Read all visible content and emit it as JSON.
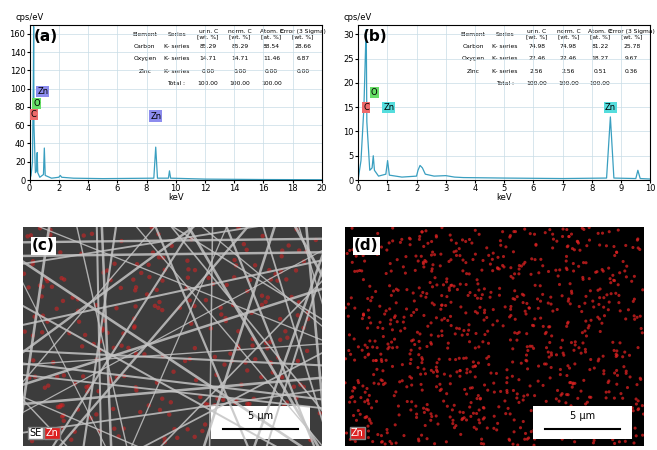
{
  "chart_data": [
    {
      "type": "line",
      "label": "(a)",
      "x_label": "keV",
      "y_label": "cps/eV",
      "color": "#3a9fc0",
      "x": [
        0,
        0.1,
        0.2,
        0.26,
        0.28,
        0.3,
        0.4,
        0.48,
        0.52,
        0.56,
        0.7,
        0.95,
        1.01,
        1.07,
        1.5,
        2.0,
        2.1,
        2.2,
        3,
        5,
        8.5,
        8.63,
        8.75,
        9.5,
        9.57,
        9.65,
        12,
        16,
        20
      ],
      "values": [
        0,
        5,
        20,
        120,
        168,
        60,
        8,
        10,
        30,
        8,
        3,
        6,
        35,
        5,
        2,
        3,
        5,
        3,
        2,
        1.5,
        2,
        36,
        2,
        2,
        10,
        2,
        1,
        0.5,
        0.3
      ],
      "xlim": [
        0,
        20
      ],
      "ylim": [
        0,
        170
      ],
      "xticks": [
        0,
        2,
        4,
        6,
        8,
        10,
        12,
        14,
        16,
        18,
        20
      ],
      "yticks": [
        0,
        20,
        40,
        60,
        80,
        100,
        120,
        140,
        160
      ],
      "grid": true,
      "peak_labels": [
        {
          "text": "Zn",
          "x": 0.9,
          "y": 97,
          "color": "#8c8cee"
        },
        {
          "text": "O",
          "x": 0.5,
          "y": 84,
          "color": "#66dd66"
        },
        {
          "text": "C",
          "x": 0.28,
          "y": 72,
          "color": "#ee6a6a"
        },
        {
          "text": "Zn",
          "x": 8.63,
          "y": 70,
          "color": "#8c8cee"
        }
      ],
      "table": {
        "header": [
          "Element",
          "Series",
          "unn. C\n[wt. %]",
          "norm. C\n[wt. %]",
          "Atom. C\n[at. %]",
          "Error (3 Sigma)\n[wt. %]"
        ],
        "rows": [
          [
            "Carbon",
            "K- series",
            "85.29",
            "85.29",
            "88.54",
            "28.66"
          ],
          [
            "Oxygen",
            "K- series",
            "14.71",
            "14.71",
            "11.46",
            "6.87"
          ],
          [
            "Zinc",
            "K- series",
            "0.00",
            "0.00",
            "0.00",
            "0.00"
          ],
          [
            null,
            "Total :",
            "100.00",
            "100.00",
            "100.00",
            null
          ]
        ]
      }
    },
    {
      "type": "line",
      "label": "(b)",
      "x_label": "keV",
      "y_label": "cps/eV",
      "color": "#3a9fc0",
      "x": [
        0,
        0.1,
        0.2,
        0.26,
        0.28,
        0.3,
        0.4,
        0.48,
        0.52,
        0.56,
        0.7,
        0.95,
        1.01,
        1.07,
        1.5,
        2.0,
        2.05,
        2.12,
        2.2,
        2.3,
        2.6,
        3.0,
        3.3,
        3.6,
        5,
        7,
        8.5,
        8.63,
        8.75,
        9.5,
        9.57,
        9.65,
        10
      ],
      "values": [
        0,
        4,
        15,
        28,
        31,
        12,
        2,
        2.5,
        5,
        2,
        0.8,
        1.2,
        4,
        1,
        0.6,
        0.8,
        2,
        3,
        2.5,
        1.2,
        0.8,
        0.9,
        0.6,
        0.5,
        0.4,
        0.3,
        0.4,
        13,
        0.4,
        0.3,
        2,
        0.3,
        0.2
      ],
      "xlim": [
        0,
        10
      ],
      "ylim": [
        0,
        32
      ],
      "xticks": [
        0,
        1,
        2,
        3,
        4,
        5,
        6,
        7,
        8,
        9,
        10
      ],
      "yticks": [
        0,
        5,
        10,
        15,
        20,
        25,
        30
      ],
      "grid": true,
      "peak_labels": [
        {
          "text": "O",
          "x": 0.55,
          "y": 18,
          "color": "#66dd66"
        },
        {
          "text": "C",
          "x": 0.28,
          "y": 15,
          "color": "#ee6a6a"
        },
        {
          "text": "Zn",
          "x": 1.05,
          "y": 15,
          "color": "#55dddd"
        },
        {
          "text": "Zn",
          "x": 8.63,
          "y": 15,
          "color": "#55dddd"
        }
      ],
      "table": {
        "header": [
          "Element",
          "Series",
          "unn. C\n[wt. %]",
          "norm. C\n[wt. %]",
          "Atom. C\n[at. %]",
          "Error (3 Sigma)\n[wt. %]"
        ],
        "rows": [
          [
            "Carbon",
            "K- series",
            "74.98",
            "74.98",
            "81.22",
            "25.78"
          ],
          [
            "Oxygen",
            "K- series",
            "22.46",
            "22.46",
            "18.27",
            "9.67"
          ],
          [
            "Zinc",
            "K- series",
            "2.56",
            "2.56",
            "0.51",
            "0.36"
          ],
          [
            null,
            "Total :",
            "100.00",
            "100.00",
            "100.00",
            null
          ]
        ]
      }
    }
  ],
  "images": [
    {
      "label": "(c)",
      "channels": [
        {
          "name": "SE",
          "color": "#ffffff"
        },
        {
          "name": "Zn",
          "color": "#dd2222"
        }
      ],
      "scale_bar": "5 µm"
    },
    {
      "label": "(d)",
      "channels": [
        {
          "name": "Zn",
          "color": "#dd2222"
        }
      ],
      "scale_bar": "5 µm"
    }
  ]
}
